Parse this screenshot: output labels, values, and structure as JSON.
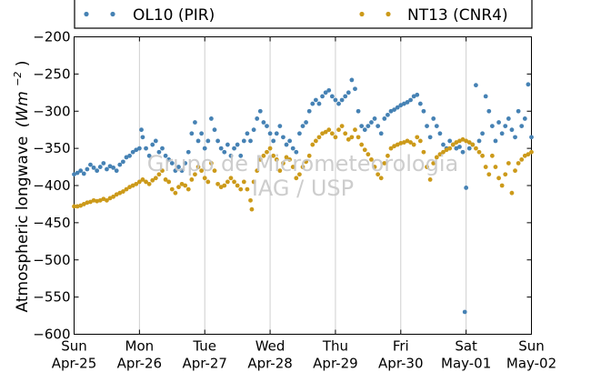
{
  "chart_data": {
    "type": "scatter",
    "ylabel_text": "Atmospheric longwave",
    "ylabel_unit_base": "(Wm",
    "ylabel_unit_exp": "−2",
    "ylabel_unit_close": ")",
    "ylim": [
      -600,
      -200
    ],
    "yticks": [
      -600,
      -550,
      -500,
      -450,
      -400,
      -350,
      -300,
      -250,
      -200
    ],
    "ytick_labels": [
      "−600",
      "−550",
      "−500",
      "−450",
      "−400",
      "−350",
      "−300",
      "−250",
      "−200"
    ],
    "xlim": [
      "2010-04-25",
      "2010-05-02"
    ],
    "xticks": [
      {
        "day": "Sun",
        "date": "Apr-25"
      },
      {
        "day": "Mon",
        "date": "Apr-26"
      },
      {
        "day": "Tue",
        "date": "Apr-27"
      },
      {
        "day": "Wed",
        "date": "Apr-28"
      },
      {
        "day": "Thu",
        "date": "Apr-29"
      },
      {
        "day": "Fri",
        "date": "Apr-30"
      },
      {
        "day": "Sat",
        "date": "May-01"
      },
      {
        "day": "Sun",
        "date": "May-02"
      }
    ],
    "grid": "vertical",
    "legend_position": "top",
    "watermark": [
      "Grupo de Micrometeorologia",
      "IAG / USP"
    ],
    "series": [
      {
        "name": "OL10 (PIR)",
        "color": "#4682b4",
        "points": [
          [
            0.0,
            -385
          ],
          [
            0.05,
            -383
          ],
          [
            0.1,
            -380
          ],
          [
            0.15,
            -384
          ],
          [
            0.2,
            -378
          ],
          [
            0.25,
            -372
          ],
          [
            0.3,
            -376
          ],
          [
            0.35,
            -380
          ],
          [
            0.4,
            -375
          ],
          [
            0.45,
            -370
          ],
          [
            0.5,
            -378
          ],
          [
            0.55,
            -374
          ],
          [
            0.6,
            -376
          ],
          [
            0.65,
            -380
          ],
          [
            0.7,
            -372
          ],
          [
            0.75,
            -368
          ],
          [
            0.8,
            -362
          ],
          [
            0.85,
            -360
          ],
          [
            0.9,
            -355
          ],
          [
            0.95,
            -352
          ],
          [
            1.0,
            -350
          ],
          [
            1.03,
            -325
          ],
          [
            1.05,
            -335
          ],
          [
            1.1,
            -350
          ],
          [
            1.15,
            -360
          ],
          [
            1.2,
            -345
          ],
          [
            1.25,
            -340
          ],
          [
            1.3,
            -355
          ],
          [
            1.35,
            -350
          ],
          [
            1.4,
            -360
          ],
          [
            1.45,
            -365
          ],
          [
            1.5,
            -370
          ],
          [
            1.55,
            -380
          ],
          [
            1.6,
            -375
          ],
          [
            1.65,
            -380
          ],
          [
            1.7,
            -370
          ],
          [
            1.75,
            -355
          ],
          [
            1.8,
            -330
          ],
          [
            1.85,
            -315
          ],
          [
            1.9,
            -340
          ],
          [
            1.95,
            -330
          ],
          [
            2.0,
            -350
          ],
          [
            2.05,
            -340
          ],
          [
            2.1,
            -310
          ],
          [
            2.15,
            -325
          ],
          [
            2.2,
            -340
          ],
          [
            2.25,
            -350
          ],
          [
            2.3,
            -355
          ],
          [
            2.35,
            -345
          ],
          [
            2.4,
            -360
          ],
          [
            2.45,
            -350
          ],
          [
            2.5,
            -345
          ],
          [
            2.55,
            -360
          ],
          [
            2.6,
            -340
          ],
          [
            2.65,
            -330
          ],
          [
            2.7,
            -340
          ],
          [
            2.75,
            -325
          ],
          [
            2.8,
            -310
          ],
          [
            2.85,
            -300
          ],
          [
            2.9,
            -315
          ],
          [
            2.95,
            -320
          ],
          [
            3.0,
            -330
          ],
          [
            3.05,
            -340
          ],
          [
            3.1,
            -330
          ],
          [
            3.15,
            -320
          ],
          [
            3.2,
            -335
          ],
          [
            3.25,
            -345
          ],
          [
            3.3,
            -340
          ],
          [
            3.35,
            -350
          ],
          [
            3.4,
            -355
          ],
          [
            3.45,
            -330
          ],
          [
            3.5,
            -320
          ],
          [
            3.55,
            -315
          ],
          [
            3.6,
            -300
          ],
          [
            3.65,
            -290
          ],
          [
            3.7,
            -285
          ],
          [
            3.75,
            -290
          ],
          [
            3.8,
            -280
          ],
          [
            3.85,
            -275
          ],
          [
            3.9,
            -272
          ],
          [
            3.95,
            -280
          ],
          [
            4.0,
            -285
          ],
          [
            4.05,
            -290
          ],
          [
            4.1,
            -285
          ],
          [
            4.15,
            -280
          ],
          [
            4.2,
            -275
          ],
          [
            4.25,
            -258
          ],
          [
            4.3,
            -270
          ],
          [
            4.35,
            -300
          ],
          [
            4.4,
            -320
          ],
          [
            4.45,
            -325
          ],
          [
            4.5,
            -320
          ],
          [
            4.55,
            -315
          ],
          [
            4.6,
            -310
          ],
          [
            4.65,
            -320
          ],
          [
            4.7,
            -330
          ],
          [
            4.75,
            -310
          ],
          [
            4.8,
            -305
          ],
          [
            4.85,
            -300
          ],
          [
            4.9,
            -298
          ],
          [
            4.95,
            -295
          ],
          [
            5.0,
            -292
          ],
          [
            5.05,
            -290
          ],
          [
            5.1,
            -288
          ],
          [
            5.15,
            -285
          ],
          [
            5.2,
            -280
          ],
          [
            5.25,
            -278
          ],
          [
            5.3,
            -290
          ],
          [
            5.35,
            -300
          ],
          [
            5.4,
            -320
          ],
          [
            5.45,
            -335
          ],
          [
            5.5,
            -310
          ],
          [
            5.55,
            -320
          ],
          [
            5.6,
            -330
          ],
          [
            5.65,
            -345
          ],
          [
            5.7,
            -350
          ],
          [
            5.75,
            -340
          ],
          [
            5.8,
            -345
          ],
          [
            5.85,
            -350
          ],
          [
            5.9,
            -348
          ],
          [
            5.95,
            -355
          ],
          [
            5.98,
            -570
          ],
          [
            6.0,
            -403
          ],
          [
            6.05,
            -350
          ],
          [
            6.1,
            -345
          ],
          [
            6.15,
            -265
          ],
          [
            6.2,
            -340
          ],
          [
            6.25,
            -330
          ],
          [
            6.3,
            -280
          ],
          [
            6.35,
            -300
          ],
          [
            6.4,
            -320
          ],
          [
            6.45,
            -340
          ],
          [
            6.5,
            -315
          ],
          [
            6.55,
            -330
          ],
          [
            6.6,
            -320
          ],
          [
            6.65,
            -310
          ],
          [
            6.7,
            -325
          ],
          [
            6.75,
            -335
          ],
          [
            6.8,
            -300
          ],
          [
            6.85,
            -320
          ],
          [
            6.9,
            -310
          ],
          [
            6.95,
            -264
          ],
          [
            7.0,
            -335
          ]
        ]
      },
      {
        "name": "NT13 (CNR4)",
        "color": "#cc9a1a",
        "points": [
          [
            0.0,
            -428
          ],
          [
            0.05,
            -428
          ],
          [
            0.1,
            -427
          ],
          [
            0.15,
            -425
          ],
          [
            0.2,
            -423
          ],
          [
            0.25,
            -422
          ],
          [
            0.3,
            -420
          ],
          [
            0.35,
            -421
          ],
          [
            0.4,
            -420
          ],
          [
            0.45,
            -418
          ],
          [
            0.5,
            -420
          ],
          [
            0.55,
            -417
          ],
          [
            0.6,
            -415
          ],
          [
            0.65,
            -412
          ],
          [
            0.7,
            -410
          ],
          [
            0.75,
            -408
          ],
          [
            0.8,
            -405
          ],
          [
            0.85,
            -402
          ],
          [
            0.9,
            -400
          ],
          [
            0.95,
            -398
          ],
          [
            1.0,
            -395
          ],
          [
            1.05,
            -392
          ],
          [
            1.1,
            -395
          ],
          [
            1.15,
            -398
          ],
          [
            1.2,
            -393
          ],
          [
            1.25,
            -390
          ],
          [
            1.3,
            -385
          ],
          [
            1.35,
            -380
          ],
          [
            1.4,
            -392
          ],
          [
            1.45,
            -395
          ],
          [
            1.5,
            -405
          ],
          [
            1.55,
            -410
          ],
          [
            1.6,
            -402
          ],
          [
            1.65,
            -398
          ],
          [
            1.7,
            -400
          ],
          [
            1.75,
            -405
          ],
          [
            1.8,
            -392
          ],
          [
            1.85,
            -385
          ],
          [
            1.9,
            -375
          ],
          [
            1.95,
            -380
          ],
          [
            2.0,
            -390
          ],
          [
            2.05,
            -395
          ],
          [
            2.1,
            -370
          ],
          [
            2.15,
            -380
          ],
          [
            2.2,
            -398
          ],
          [
            2.25,
            -402
          ],
          [
            2.3,
            -400
          ],
          [
            2.35,
            -395
          ],
          [
            2.4,
            -390
          ],
          [
            2.45,
            -395
          ],
          [
            2.5,
            -400
          ],
          [
            2.55,
            -405
          ],
          [
            2.6,
            -395
          ],
          [
            2.65,
            -405
          ],
          [
            2.7,
            -420
          ],
          [
            2.72,
            -432
          ],
          [
            2.75,
            -395
          ],
          [
            2.8,
            -380
          ],
          [
            2.85,
            -365
          ],
          [
            2.9,
            -360
          ],
          [
            2.95,
            -355
          ],
          [
            3.0,
            -350
          ],
          [
            3.05,
            -360
          ],
          [
            3.1,
            -365
          ],
          [
            3.15,
            -380
          ],
          [
            3.2,
            -370
          ],
          [
            3.25,
            -362
          ],
          [
            3.3,
            -365
          ],
          [
            3.35,
            -375
          ],
          [
            3.4,
            -390
          ],
          [
            3.45,
            -385
          ],
          [
            3.5,
            -375
          ],
          [
            3.55,
            -368
          ],
          [
            3.6,
            -360
          ],
          [
            3.65,
            -345
          ],
          [
            3.7,
            -340
          ],
          [
            3.75,
            -335
          ],
          [
            3.8,
            -330
          ],
          [
            3.85,
            -328
          ],
          [
            3.9,
            -325
          ],
          [
            3.95,
            -330
          ],
          [
            4.0,
            -335
          ],
          [
            4.05,
            -325
          ],
          [
            4.1,
            -320
          ],
          [
            4.15,
            -330
          ],
          [
            4.2,
            -338
          ],
          [
            4.25,
            -335
          ],
          [
            4.3,
            -325
          ],
          [
            4.35,
            -335
          ],
          [
            4.4,
            -345
          ],
          [
            4.45,
            -352
          ],
          [
            4.5,
            -358
          ],
          [
            4.55,
            -365
          ],
          [
            4.6,
            -375
          ],
          [
            4.65,
            -385
          ],
          [
            4.7,
            -390
          ],
          [
            4.75,
            -370
          ],
          [
            4.8,
            -360
          ],
          [
            4.85,
            -350
          ],
          [
            4.9,
            -347
          ],
          [
            4.95,
            -345
          ],
          [
            5.0,
            -343
          ],
          [
            5.05,
            -342
          ],
          [
            5.1,
            -340
          ],
          [
            5.15,
            -342
          ],
          [
            5.2,
            -345
          ],
          [
            5.25,
            -335
          ],
          [
            5.3,
            -340
          ],
          [
            5.35,
            -355
          ],
          [
            5.4,
            -375
          ],
          [
            5.45,
            -392
          ],
          [
            5.5,
            -370
          ],
          [
            5.55,
            -362
          ],
          [
            5.6,
            -358
          ],
          [
            5.65,
            -355
          ],
          [
            5.7,
            -352
          ],
          [
            5.75,
            -350
          ],
          [
            5.8,
            -345
          ],
          [
            5.85,
            -342
          ],
          [
            5.9,
            -340
          ],
          [
            5.95,
            -338
          ],
          [
            6.0,
            -340
          ],
          [
            6.05,
            -342
          ],
          [
            6.1,
            -345
          ],
          [
            6.15,
            -350
          ],
          [
            6.2,
            -355
          ],
          [
            6.25,
            -360
          ],
          [
            6.3,
            -375
          ],
          [
            6.35,
            -385
          ],
          [
            6.4,
            -360
          ],
          [
            6.45,
            -375
          ],
          [
            6.5,
            -390
          ],
          [
            6.55,
            -400
          ],
          [
            6.6,
            -385
          ],
          [
            6.65,
            -370
          ],
          [
            6.7,
            -410
          ],
          [
            6.75,
            -380
          ],
          [
            6.8,
            -370
          ],
          [
            6.85,
            -365
          ],
          [
            6.9,
            -360
          ],
          [
            6.95,
            -358
          ],
          [
            7.0,
            -355
          ]
        ]
      }
    ]
  }
}
